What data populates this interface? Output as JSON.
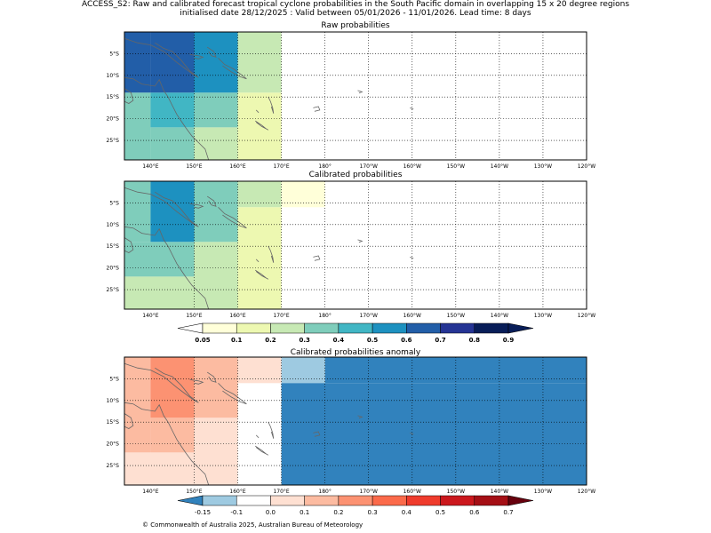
{
  "header": {
    "line1": "ACCESS_S2: Raw and calibrated forecast tropical cyclone probabilities in the South Pacific domain in overlapping 15 x 20 degree regions",
    "line2": "initialised date 28/12/2025 :  Valid between 05/01/2026 - 11/01/2026. Lead time: 8 days"
  },
  "chart_data": [
    {
      "type": "heatmap",
      "title": "Raw probabilities",
      "x_ticks": [
        "140°E",
        "150°E",
        "160°E",
        "170°E",
        "180°",
        "170°W",
        "160°W",
        "150°W",
        "140°W",
        "130°W",
        "120°W"
      ],
      "y_ticks": [
        "5°S",
        "10°S",
        "15°S",
        "20°S",
        "25°S"
      ],
      "xlim_lon_east": [
        134,
        240
      ],
      "ylim_lat_south": [
        0,
        29.5
      ],
      "cells": [
        {
          "lon": [
            134,
            140
          ],
          "lat": [
            0,
            14
          ],
          "value": 0.6
        },
        {
          "lon": [
            140,
            150
          ],
          "lat": [
            0,
            14
          ],
          "value": 0.65
        },
        {
          "lon": [
            150,
            160
          ],
          "lat": [
            0,
            14
          ],
          "value": 0.5
        },
        {
          "lon": [
            160,
            170
          ],
          "lat": [
            0,
            14
          ],
          "value": 0.25
        },
        {
          "lon": [
            134,
            140
          ],
          "lat": [
            14,
            29.5
          ],
          "value": 0.35
        },
        {
          "lon": [
            140,
            150
          ],
          "lat": [
            14,
            22
          ],
          "value": 0.45
        },
        {
          "lon": [
            150,
            160
          ],
          "lat": [
            14,
            22
          ],
          "value": 0.35
        },
        {
          "lon": [
            140,
            150
          ],
          "lat": [
            22,
            29.5
          ],
          "value": 0.35
        },
        {
          "lon": [
            150,
            160
          ],
          "lat": [
            22,
            29.5
          ],
          "value": 0.25
        },
        {
          "lon": [
            160,
            170
          ],
          "lat": [
            14,
            29.5
          ],
          "value": 0.15
        }
      ]
    },
    {
      "type": "heatmap",
      "title": "Calibrated probabilities",
      "x_ticks": [
        "140°E",
        "150°E",
        "160°E",
        "170°E",
        "180°",
        "170°W",
        "160°W",
        "150°W",
        "140°W",
        "130°W",
        "120°W"
      ],
      "y_ticks": [
        "5°S",
        "10°S",
        "15°S",
        "20°S",
        "25°S"
      ],
      "xlim_lon_east": [
        134,
        240
      ],
      "ylim_lat_south": [
        0,
        29.5
      ],
      "cells": [
        {
          "lon": [
            134,
            140
          ],
          "lat": [
            0,
            14
          ],
          "value": 0.35
        },
        {
          "lon": [
            140,
            150
          ],
          "lat": [
            0,
            14
          ],
          "value": 0.5
        },
        {
          "lon": [
            150,
            160
          ],
          "lat": [
            0,
            14
          ],
          "value": 0.35
        },
        {
          "lon": [
            160,
            170
          ],
          "lat": [
            0,
            6
          ],
          "value": 0.25
        },
        {
          "lon": [
            160,
            170
          ],
          "lat": [
            6,
            29.5
          ],
          "value": 0.15
        },
        {
          "lon": [
            170,
            180
          ],
          "lat": [
            0,
            6
          ],
          "value": 0.08
        },
        {
          "lon": [
            134,
            150
          ],
          "lat": [
            14,
            22
          ],
          "value": 0.35
        },
        {
          "lon": [
            150,
            160
          ],
          "lat": [
            14,
            29.5
          ],
          "value": 0.25
        },
        {
          "lon": [
            134,
            150
          ],
          "lat": [
            22,
            29.5
          ],
          "value": 0.25
        }
      ]
    },
    {
      "type": "heatmap",
      "title": "Calibrated probabilities anomaly",
      "x_ticks": [
        "140°E",
        "150°E",
        "160°E",
        "170°E",
        "180°",
        "170°W",
        "160°W",
        "150°W",
        "140°W",
        "130°W",
        "120°W"
      ],
      "y_ticks": [
        "5°S",
        "10°S",
        "15°S",
        "20°S",
        "25°S"
      ],
      "xlim_lon_east": [
        134,
        240
      ],
      "ylim_lat_south": [
        0,
        29.5
      ],
      "cells": [
        {
          "lon": [
            134,
            140
          ],
          "lat": [
            0,
            22
          ],
          "value": 0.15
        },
        {
          "lon": [
            140,
            150
          ],
          "lat": [
            0,
            14
          ],
          "value": 0.25
        },
        {
          "lon": [
            150,
            160
          ],
          "lat": [
            0,
            14
          ],
          "value": 0.15
        },
        {
          "lon": [
            160,
            170
          ],
          "lat": [
            0,
            6
          ],
          "value": 0.05
        },
        {
          "lon": [
            140,
            150
          ],
          "lat": [
            14,
            22
          ],
          "value": 0.15
        },
        {
          "lon": [
            150,
            160
          ],
          "lat": [
            14,
            29.5
          ],
          "value": 0.05
        },
        {
          "lon": [
            134,
            150
          ],
          "lat": [
            22,
            29.5
          ],
          "value": 0.05
        },
        {
          "lon": [
            170,
            180
          ],
          "lat": [
            0,
            6
          ],
          "value": -0.12
        },
        {
          "lon": [
            170,
            240
          ],
          "lat": [
            6,
            29.5
          ],
          "value": -0.2
        },
        {
          "lon": [
            180,
            240
          ],
          "lat": [
            0,
            6
          ],
          "value": -0.2
        }
      ]
    }
  ],
  "prob_colorbar": {
    "labels": [
      "0.05",
      "0.1",
      "0.2",
      "0.3",
      "0.4",
      "0.5",
      "0.6",
      "0.7",
      "0.8",
      "0.9"
    ],
    "under_color": "#ffffff",
    "over_color": "#081d58",
    "colors": [
      "#ffffd9",
      "#edf8b1",
      "#c7e9b4",
      "#7fcdbb",
      "#41b6c4",
      "#1d91c0",
      "#225ea8",
      "#253494",
      "#081d58"
    ]
  },
  "anom_colorbar": {
    "labels": [
      "-0.15",
      "-0.1",
      "0.0",
      "0.1",
      "0.2",
      "0.3",
      "0.4",
      "0.5",
      "0.6",
      "0.7"
    ],
    "under_color": "#3182bd",
    "over_color": "#67000d",
    "colors": [
      "#9ecae1",
      "#ffffff",
      "#fee0d2",
      "#fcbba1",
      "#fc9272",
      "#fb6a4a",
      "#ef3b2c",
      "#cb181d",
      "#a50f15"
    ]
  },
  "footer": {
    "copyright": "© Commonwealth of Australia 2025, Australian Bureau of Meteorology"
  }
}
